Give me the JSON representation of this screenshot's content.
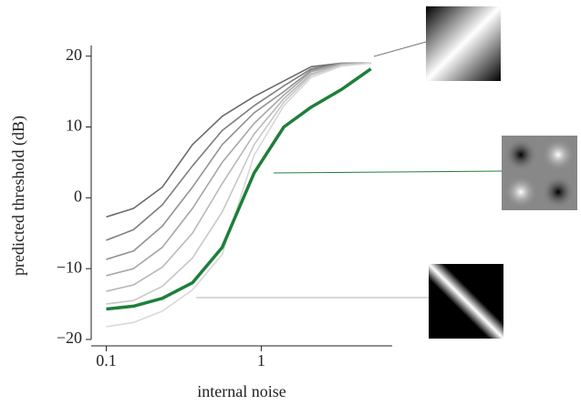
{
  "chart_data": {
    "type": "line",
    "xlabel": "internal noise",
    "ylabel": "predicted threshold (dB)",
    "xscale": "log",
    "x": [
      0.1,
      0.15,
      0.23,
      0.36,
      0.56,
      0.9,
      1.4,
      2.1,
      3.3,
      5.1
    ],
    "series": [
      {
        "color": "#6a6a6a",
        "values": [
          -2.7,
          -1.5,
          1.5,
          7.5,
          11.5,
          14.3,
          16.5,
          18.5,
          19,
          19
        ]
      },
      {
        "color": "#7e7e7e",
        "values": [
          -6,
          -4.5,
          -1,
          4.5,
          9.5,
          13,
          15.8,
          18.2,
          19,
          19
        ]
      },
      {
        "color": "#929292",
        "values": [
          -8.7,
          -7.5,
          -4,
          1.5,
          7.5,
          12,
          15,
          18,
          19,
          19
        ]
      },
      {
        "color": "#a6a6a6",
        "values": [
          -11,
          -10,
          -7,
          -1.5,
          5,
          10.5,
          14.5,
          17.8,
          18.9,
          19
        ]
      },
      {
        "color": "#b8b8b8",
        "values": [
          -13.2,
          -12.3,
          -9.8,
          -5,
          2,
          9,
          14,
          17.5,
          18.8,
          19
        ]
      },
      {
        "color": "#c8c8c8",
        "values": [
          -15,
          -14.5,
          -12.5,
          -8.5,
          -2,
          7.5,
          13.5,
          17.3,
          18.7,
          19
        ]
      },
      {
        "color": "#d8d8d8",
        "values": [
          -18.2,
          -17.6,
          -16,
          -13,
          -8,
          6,
          13,
          17,
          18.6,
          19
        ]
      },
      {
        "color": "#1e7f3a",
        "values": [
          -15.7,
          -15.3,
          -14.2,
          -12,
          -7,
          3.5,
          10,
          12.8,
          15.3,
          18.2
        ]
      }
    ],
    "xlim": [
      0.08,
      7
    ],
    "xticks": [
      0.1,
      1
    ],
    "ylim": [
      -20,
      21.5
    ],
    "yticks": [
      {
        "value": -20,
        "label": "−20"
      },
      {
        "value": -10,
        "label": "−10"
      },
      0,
      10,
      20
    ],
    "grid": false
  }
}
